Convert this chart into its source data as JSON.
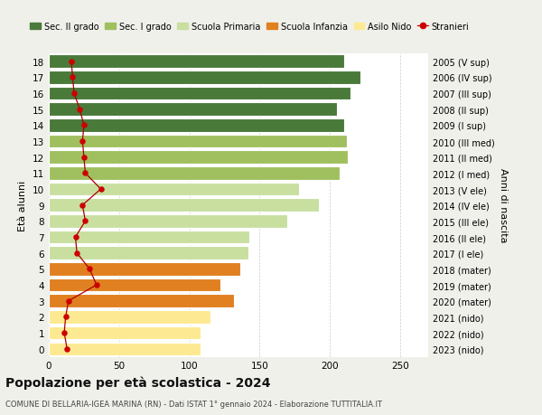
{
  "ages": [
    0,
    1,
    2,
    3,
    4,
    5,
    6,
    7,
    8,
    9,
    10,
    11,
    12,
    13,
    14,
    15,
    16,
    17,
    18
  ],
  "bar_values": [
    108,
    108,
    115,
    132,
    122,
    136,
    142,
    143,
    170,
    192,
    178,
    207,
    213,
    212,
    210,
    205,
    215,
    222,
    210
  ],
  "stranieri": [
    13,
    11,
    12,
    14,
    34,
    29,
    20,
    19,
    26,
    24,
    37,
    26,
    25,
    24,
    25,
    22,
    18,
    17,
    16
  ],
  "bar_colors": [
    "#fde992",
    "#fde992",
    "#fde992",
    "#e08020",
    "#e08020",
    "#e08020",
    "#c8dfa0",
    "#c8dfa0",
    "#c8dfa0",
    "#c8dfa0",
    "#c8dfa0",
    "#a0c060",
    "#a0c060",
    "#a0c060",
    "#4a7a3a",
    "#4a7a3a",
    "#4a7a3a",
    "#4a7a3a",
    "#4a7a3a"
  ],
  "right_labels": [
    "2023 (nido)",
    "2022 (nido)",
    "2021 (nido)",
    "2020 (mater)",
    "2019 (mater)",
    "2018 (mater)",
    "2017 (I ele)",
    "2016 (II ele)",
    "2015 (III ele)",
    "2014 (IV ele)",
    "2013 (V ele)",
    "2012 (I med)",
    "2011 (II med)",
    "2010 (III med)",
    "2009 (I sup)",
    "2008 (II sup)",
    "2007 (III sup)",
    "2006 (IV sup)",
    "2005 (V sup)"
  ],
  "legend_labels": [
    "Sec. II grado",
    "Sec. I grado",
    "Scuola Primaria",
    "Scuola Infanzia",
    "Asilo Nido",
    "Stranieri"
  ],
  "legend_colors": [
    "#4a7a3a",
    "#a0c060",
    "#c8dfa0",
    "#e08020",
    "#fde992",
    "#cc0000"
  ],
  "ylabel_left": "Età alunni",
  "ylabel_right": "Anni di nascita",
  "title": "Popolazione per età scolastica - 2024",
  "subtitle": "COMUNE DI BELLARIA-IGEA MARINA (RN) - Dati ISTAT 1° gennaio 2024 - Elaborazione TUTTITALIA.IT",
  "xlim": [
    0,
    270
  ],
  "xticks": [
    0,
    50,
    100,
    150,
    200,
    250
  ],
  "background_color": "#f0f0eb",
  "plot_bg_color": "#ffffff",
  "grid_color": "#cccccc"
}
